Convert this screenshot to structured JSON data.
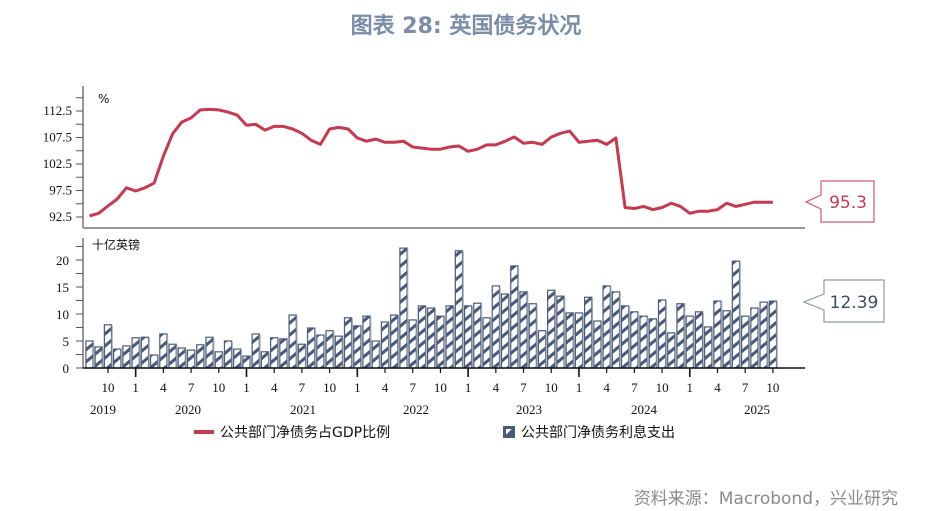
{
  "title": "图表 28: 英国债务状况",
  "source": "资料来源：Macrobond，兴业研究",
  "legend": {
    "line_label": "公共部门净债务占GDP比例",
    "bar_label": "公共部门净债务利息支出"
  },
  "colors": {
    "line": "#c8384e",
    "bar_fill": "#4a5a78",
    "bar_edge": "#9aa6bd",
    "title": "#7b8ca8",
    "callout_line_border": "#d35a6e",
    "callout_bar_border": "#8d99ad"
  },
  "top_panel": {
    "unit": "%",
    "callout": "95.3"
  },
  "bottom_panel": {
    "unit": "十亿英镑",
    "callout": "12.39"
  },
  "chart_data": [
    {
      "type": "line",
      "title": "公共部门净债务占GDP比例",
      "ylabel": "%",
      "ylim": [
        90,
        116
      ],
      "yticks": [
        92.5,
        97.5,
        102.5,
        107.5,
        112.5
      ],
      "x_start": "2019-08",
      "x_end": "2025-10",
      "frequency": "monthly",
      "last_value": 95.3,
      "values": [
        92.7,
        93.2,
        94.6,
        95.9,
        98.0,
        97.4,
        98.0,
        98.9,
        104.0,
        108.2,
        110.4,
        111.2,
        112.7,
        112.8,
        112.7,
        112.3,
        111.7,
        109.8,
        110.0,
        108.9,
        109.6,
        109.6,
        109.1,
        108.3,
        107.0,
        106.2,
        109.1,
        109.4,
        109.1,
        107.4,
        106.8,
        107.2,
        106.6,
        106.6,
        106.8,
        105.7,
        105.5,
        105.3,
        105.3,
        105.7,
        105.9,
        104.9,
        105.3,
        106.1,
        106.1,
        106.8,
        107.6,
        106.4,
        106.6,
        106.2,
        107.6,
        108.3,
        108.7,
        106.6,
        106.8,
        107.0,
        106.2,
        107.4,
        94.3,
        94.1,
        94.5,
        93.9,
        94.3,
        95.1,
        94.5,
        93.2,
        93.6,
        93.6,
        93.9,
        95.1,
        94.5,
        94.9,
        95.3,
        95.3,
        95.3
      ]
    },
    {
      "type": "bar",
      "title": "公共部门净债务利息支出",
      "ylabel": "十亿英镑",
      "ylim": [
        0,
        24
      ],
      "yticks": [
        0,
        5,
        10,
        15,
        20
      ],
      "x_start": "2019-08",
      "x_end": "2025-10",
      "frequency": "monthly",
      "last_value": 12.39,
      "values": [
        5.0,
        3.9,
        8.0,
        3.5,
        4.1,
        5.6,
        5.7,
        2.4,
        6.3,
        4.4,
        3.7,
        3.3,
        4.3,
        5.7,
        3.0,
        5.0,
        3.5,
        2.2,
        6.3,
        3.0,
        5.6,
        5.4,
        9.8,
        4.4,
        7.4,
        6.1,
        6.9,
        5.9,
        9.3,
        7.8,
        9.6,
        5.0,
        8.5,
        9.8,
        22.2,
        8.9,
        11.5,
        11.1,
        9.6,
        11.5,
        21.7,
        11.5,
        12.0,
        9.3,
        15.2,
        13.7,
        18.9,
        14.1,
        11.9,
        6.9,
        14.4,
        13.3,
        10.2,
        10.2,
        13.1,
        8.7,
        15.2,
        14.1,
        11.5,
        10.4,
        9.6,
        9.1,
        12.6,
        6.5,
        11.9,
        9.6,
        10.4,
        7.6,
        12.4,
        10.6,
        19.8,
        9.6,
        11.1,
        12.2,
        12.39
      ]
    }
  ],
  "x_axis": {
    "month_ticks": [
      "10",
      "1",
      "4",
      "7",
      "10",
      "1",
      "4",
      "7",
      "10",
      "1",
      "4",
      "7",
      "10",
      "1",
      "4",
      "7",
      "10",
      "1",
      "4",
      "7",
      "10",
      "1",
      "4",
      "7",
      "10"
    ],
    "year_labels": [
      "2019",
      "2020",
      "2021",
      "2022",
      "2023",
      "2024",
      "2025"
    ]
  }
}
